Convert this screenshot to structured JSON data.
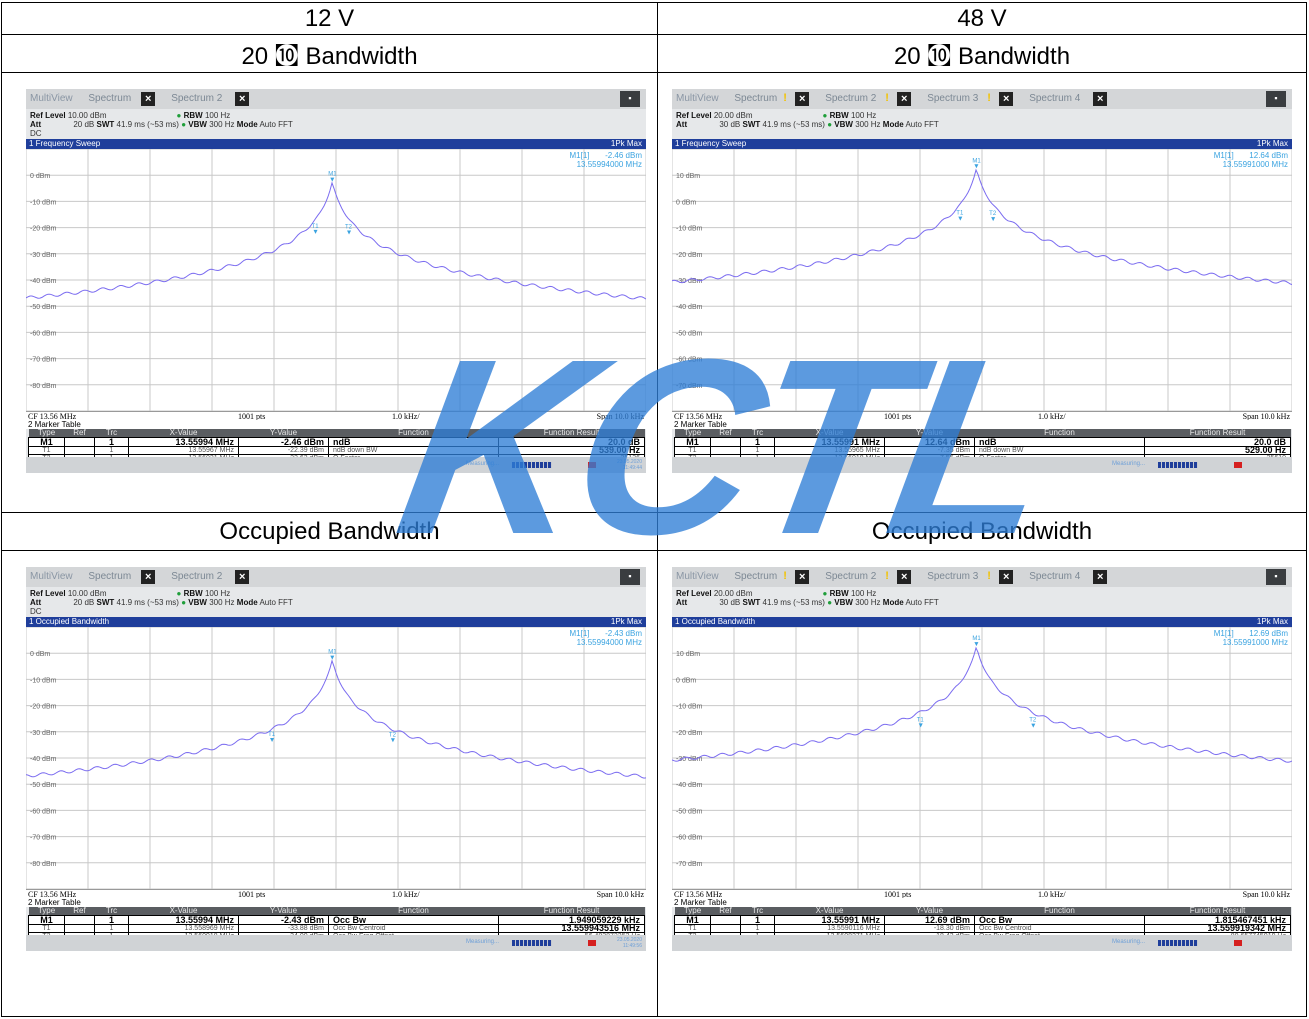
{
  "table": {
    "col_headers": [
      "12 V",
      "48 V"
    ],
    "section_20db": {
      "label_left": "20 ㉈ Bandwidth",
      "label_right": "20 ㉈ Bandwidth"
    },
    "section_obw": {
      "label_left": "Occupied Bandwidth",
      "label_right": "Occupied Bandwidth"
    }
  },
  "watermark": {
    "text": "KCTL",
    "color": "#2e7ed6"
  },
  "colors": {
    "trace": "#7b6cf0",
    "title_bar": "#1f3e9b",
    "marker_text": "#3aa3e0"
  },
  "screens": [
    {
      "tabs": [
        "MultiView",
        "Spectrum",
        "Spectrum 2"
      ],
      "tab_warn": false,
      "ref_level": "10.00 dBm",
      "att": "20 dB",
      "swt": "41.9 ms (~53 ms)",
      "rbw": "100 Hz",
      "vbw": "300 Hz",
      "mode": "Auto FFT",
      "dc": "DC",
      "measurement": "1 Frequency Sweep",
      "detector": "1Pk Max",
      "marker_readout": {
        "name": "M1[1]",
        "level": "-2.46 dBm",
        "freq": "13.55994000 MHz"
      },
      "y_labels": [
        "0 dBm",
        "-10 dBm",
        "-20 dBm",
        "-30 dBm",
        "-40 dBm",
        "-50 dBm",
        "-60 dBm",
        "-70 dBm",
        "-80 dBm"
      ],
      "cf": "CF 13.56 MHz",
      "pts": "1001 pts",
      "div": "1.0 kHz/",
      "span": "Span 10.0 kHz",
      "marker_table_title": "2 Marker Table",
      "mt_headers": [
        "Type",
        "Ref",
        "Trc",
        "X-Value",
        "Y-Value",
        "Function",
        "Function Result"
      ],
      "mt_rows": [
        [
          "M1",
          "",
          "1",
          "13.55994 MHz",
          "-2.46 dBm",
          "ndB",
          "20.0 dB"
        ],
        [
          "T1",
          "",
          "1",
          "13.55967 MHz",
          "-22.39 dBm",
          "ndB down BW",
          "539.00 Hz"
        ],
        [
          "T2",
          "",
          "1",
          "13.56021 MHz",
          "-22.63 dBm",
          "Q Factor",
          "25136"
        ]
      ],
      "status_text": "Measuring...",
      "date": "23.05.2020",
      "time": "11:49:44"
    },
    {
      "tabs": [
        "MultiView",
        "Spectrum",
        "Spectrum 2",
        "Spectrum 3",
        "Spectrum 4"
      ],
      "tab_warn": true,
      "ref_level": "20.00 dBm",
      "att": "30 dB",
      "swt": "41.9 ms (~53 ms)",
      "rbw": "100 Hz",
      "vbw": "300 Hz",
      "mode": "Auto FFT",
      "dc": "",
      "measurement": "1 Frequency Sweep",
      "detector": "1Pk Max",
      "marker_readout": {
        "name": "M1[1]",
        "level": "12.64 dBm",
        "freq": "13.55991000 MHz"
      },
      "y_labels": [
        "10 dBm",
        "0 dBm",
        "-10 dBm",
        "-20 dBm",
        "-30 dBm",
        "-40 dBm",
        "-50 dBm",
        "-60 dBm",
        "-70 dBm"
      ],
      "cf": "CF 13.56 MHz",
      "pts": "1001 pts",
      "div": "1.0 kHz/",
      "span": "Span 10.0 kHz",
      "marker_table_title": "2 Marker Table",
      "mt_headers": [
        "Type",
        "Ref",
        "Trc",
        "X-Value",
        "Y-Value",
        "Function",
        "Function Result"
      ],
      "mt_rows": [
        [
          "M1",
          "",
          "1",
          "13.55991 MHz",
          "12.64 dBm",
          "ndB",
          "20.0 dB"
        ],
        [
          "T1",
          "",
          "1",
          "13.55965 MHz",
          "-7.35 dBm",
          "ndB down BW",
          "529.00 Hz"
        ],
        [
          "T2",
          "",
          "1",
          "13.56018 MHz",
          "-7.55 dBm",
          "Q Factor",
          "25610"
        ]
      ],
      "status_text": "Measuring...",
      "date": "",
      "time": ""
    },
    {
      "tabs": [
        "MultiView",
        "Spectrum",
        "Spectrum 2"
      ],
      "tab_warn": false,
      "ref_level": "10.00 dBm",
      "att": "20 dB",
      "swt": "41.9 ms (~53 ms)",
      "rbw": "100 Hz",
      "vbw": "300 Hz",
      "mode": "Auto FFT",
      "dc": "DC",
      "measurement": "1 Occupied Bandwidth",
      "detector": "1Pk Max",
      "marker_readout": {
        "name": "M1[1]",
        "level": "-2.43 dBm",
        "freq": "13.55994000 MHz"
      },
      "y_labels": [
        "0 dBm",
        "-10 dBm",
        "-20 dBm",
        "-30 dBm",
        "-40 dBm",
        "-50 dBm",
        "-60 dBm",
        "-70 dBm",
        "-80 dBm"
      ],
      "cf": "CF 13.56 MHz",
      "pts": "1001 pts",
      "div": "1.0 kHz/",
      "span": "Span 10.0 kHz",
      "marker_table_title": "2 Marker Table",
      "mt_headers": [
        "Type",
        "Ref",
        "Trc",
        "X-Value",
        "Y-Value",
        "Function",
        "Function Result"
      ],
      "mt_rows": [
        [
          "M1",
          "",
          "1",
          "13.55994 MHz",
          "-2.43 dBm",
          "Occ Bw",
          "1.949059229 kHz"
        ],
        [
          "T1",
          "",
          "1",
          "13.558969 MHz",
          "-33.88 dBm",
          "Occ Bw Centroid",
          "13.559943516 MHz"
        ],
        [
          "T2",
          "",
          "1",
          "13.560918 MHz",
          "-34.00 dBm",
          "Occ Bw Freq Offset",
          "-56.483872253 Hz"
        ]
      ],
      "status_text": "Measuring...",
      "date": "23.05.2020",
      "time": "11:49:56"
    },
    {
      "tabs": [
        "MultiView",
        "Spectrum",
        "Spectrum 2",
        "Spectrum 3",
        "Spectrum 4"
      ],
      "tab_warn": true,
      "ref_level": "20.00 dBm",
      "att": "30 dB",
      "swt": "41.9 ms (~53 ms)",
      "rbw": "100 Hz",
      "vbw": "300 Hz",
      "mode": "Auto FFT",
      "dc": "",
      "measurement": "1 Occupied Bandwidth",
      "detector": "1Pk Max",
      "marker_readout": {
        "name": "M1[1]",
        "level": "12.69 dBm",
        "freq": "13.55991000 MHz"
      },
      "y_labels": [
        "10 dBm",
        "0 dBm",
        "-10 dBm",
        "-20 dBm",
        "-30 dBm",
        "-40 dBm",
        "-50 dBm",
        "-60 dBm",
        "-70 dBm"
      ],
      "cf": "CF 13.56 MHz",
      "pts": "1001 pts",
      "div": "1.0 kHz/",
      "span": "Span 10.0 kHz",
      "marker_table_title": "2 Marker Table",
      "mt_headers": [
        "Type",
        "Ref",
        "Trc",
        "X-Value",
        "Y-Value",
        "Function",
        "Function Result"
      ],
      "mt_rows": [
        [
          "M1",
          "",
          "1",
          "13.55991 MHz",
          "12.69 dBm",
          "Occ Bw",
          "1.815467451 kHz"
        ],
        [
          "T1",
          "",
          "1",
          "13.5590116 MHz",
          "-18.30 dBm",
          "Occ Bw Centroid",
          "13.559919342 MHz"
        ],
        [
          "T2",
          "",
          "1",
          "13.5608271 MHz",
          "-18.43 dBm",
          "Occ Bw Freq Offset",
          "-80.657745019 Hz"
        ]
      ],
      "status_text": "Measuring...",
      "date": "",
      "time": ""
    }
  ],
  "chart_data": [
    {
      "type": "line",
      "ylim": [
        -90,
        10
      ],
      "x_center_mhz": 13.56,
      "x_span_khz": 10.0,
      "peak": {
        "x": 13.55994,
        "y": -2.46
      },
      "markers": [
        {
          "name": "M1",
          "x": 13.55994,
          "y": -2.46
        },
        {
          "name": "T1",
          "x": 13.55967,
          "y": -22.39
        },
        {
          "name": "T2",
          "x": 13.56021,
          "y": -22.63
        }
      ],
      "edge_level_dbm": -47
    },
    {
      "type": "line",
      "ylim": [
        -80,
        20
      ],
      "x_center_mhz": 13.56,
      "x_span_khz": 10.0,
      "peak": {
        "x": 13.55991,
        "y": 12.64
      },
      "markers": [
        {
          "name": "M1",
          "x": 13.55991,
          "y": 12.64
        },
        {
          "name": "T1",
          "x": 13.55965,
          "y": -7.35
        },
        {
          "name": "T2",
          "x": 13.56018,
          "y": -7.55
        }
      ],
      "edge_level_dbm": -31
    },
    {
      "type": "line",
      "ylim": [
        -90,
        10
      ],
      "x_center_mhz": 13.56,
      "x_span_khz": 10.0,
      "peak": {
        "x": 13.55994,
        "y": -2.43
      },
      "markers": [
        {
          "name": "M1",
          "x": 13.55994,
          "y": -2.43
        },
        {
          "name": "T1",
          "x": 13.558969,
          "y": -33.88
        },
        {
          "name": "T2",
          "x": 13.560918,
          "y": -34.0
        }
      ],
      "edge_level_dbm": -47
    },
    {
      "type": "line",
      "ylim": [
        -80,
        20
      ],
      "x_center_mhz": 13.56,
      "x_span_khz": 10.0,
      "peak": {
        "x": 13.55991,
        "y": 12.69
      },
      "markers": [
        {
          "name": "M1",
          "x": 13.55991,
          "y": 12.69
        },
        {
          "name": "T1",
          "x": 13.5590116,
          "y": -18.3
        },
        {
          "name": "T2",
          "x": 13.5608271,
          "y": -18.43
        }
      ],
      "edge_level_dbm": -31
    }
  ]
}
